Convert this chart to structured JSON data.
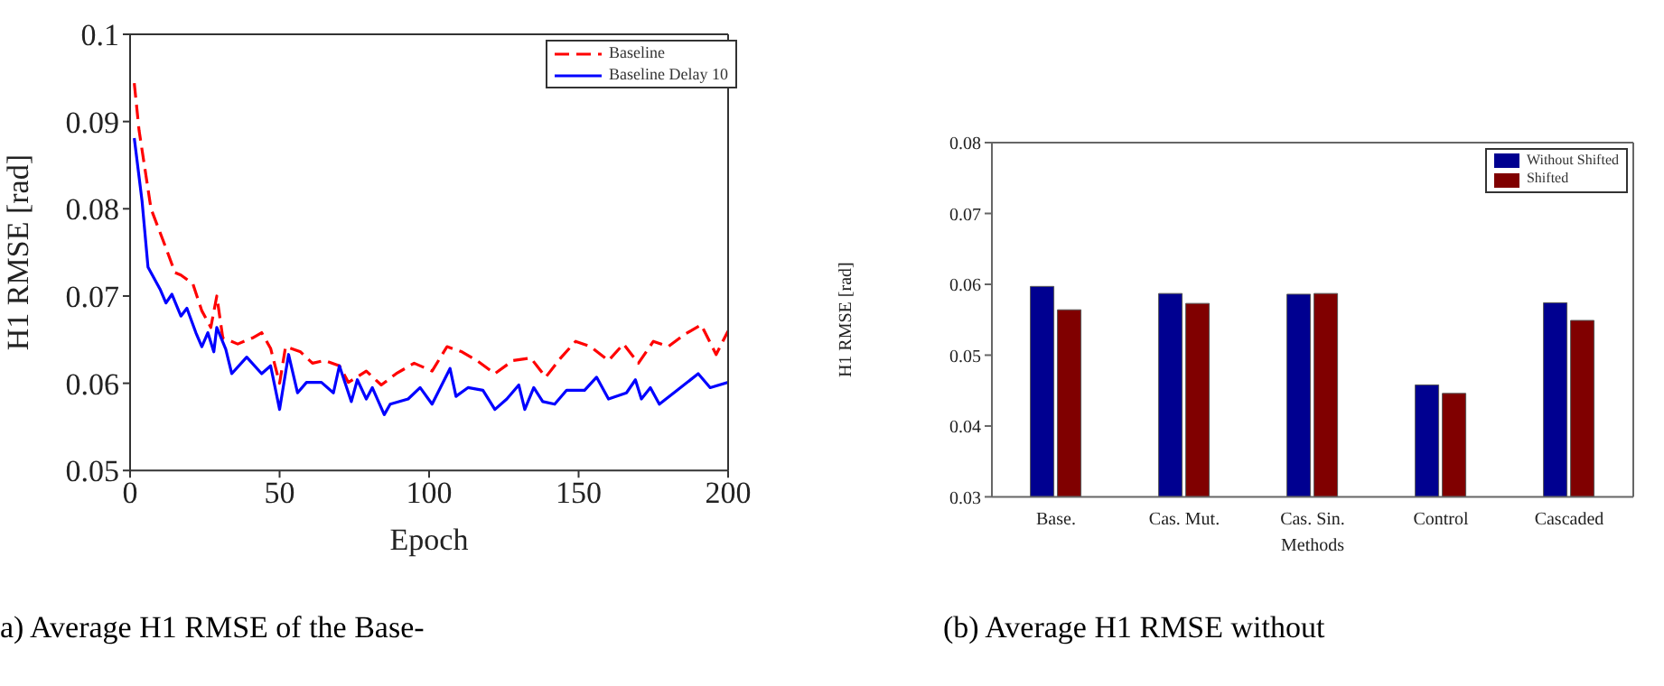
{
  "chart_data": [
    {
      "type": "line",
      "xlabel": "Epoch",
      "ylabel": "H1 RMSE [rad]",
      "xlim": [
        0,
        200
      ],
      "xticks": [
        0,
        50,
        100,
        150,
        200
      ],
      "ylim": [
        0.05,
        0.1
      ],
      "yticks": [
        0.05,
        0.06,
        0.07,
        0.08,
        0.09,
        0.1
      ],
      "grid": false,
      "legend": "top right",
      "marker": "none",
      "annotations": [
        "a) Average H1 RMSE of the Base-"
      ],
      "series": [
        {
          "name": "Baseline",
          "color": "#ff0000",
          "line_style": "dashed",
          "x": [
            1.4,
            3,
            7,
            12,
            15,
            17,
            21,
            24,
            27,
            29,
            31,
            36,
            41,
            44,
            47,
            50,
            52,
            57,
            61,
            65,
            70,
            73,
            79,
            84,
            89,
            95,
            101,
            106,
            111,
            116,
            122,
            128,
            134,
            139,
            144,
            149,
            154,
            160,
            165,
            170,
            175,
            180,
            185,
            191,
            196,
            200
          ],
          "values": [
            0.0944,
            0.089,
            0.08,
            0.0755,
            0.0727,
            0.0724,
            0.0714,
            0.0683,
            0.0664,
            0.07,
            0.0652,
            0.0645,
            0.0652,
            0.0658,
            0.064,
            0.06,
            0.0642,
            0.0636,
            0.0623,
            0.0626,
            0.062,
            0.0601,
            0.0614,
            0.0598,
            0.0611,
            0.0623,
            0.0614,
            0.0642,
            0.0636,
            0.0626,
            0.0611,
            0.0626,
            0.0629,
            0.0607,
            0.0629,
            0.0648,
            0.0642,
            0.0626,
            0.0645,
            0.0623,
            0.0648,
            0.0642,
            0.0655,
            0.0667,
            0.0633,
            0.066
          ]
        },
        {
          "name": "Baseline Delay 10",
          "color": "#0000ff",
          "line_style": "solid",
          "x": [
            1.4,
            4,
            6,
            10,
            12,
            14,
            17,
            19,
            22,
            24,
            26,
            28,
            29,
            32,
            34,
            39,
            44,
            47,
            50,
            53,
            56,
            59,
            64,
            68,
            70,
            74,
            76,
            79,
            81,
            85,
            87,
            93,
            97,
            101,
            107,
            109,
            113,
            118,
            122,
            126,
            130,
            132,
            135,
            138,
            142,
            146,
            152,
            156,
            160,
            166,
            169,
            171,
            174,
            177,
            183,
            190,
            194,
            200
          ],
          "values": [
            0.0881,
            0.0809,
            0.0733,
            0.0708,
            0.0692,
            0.0702,
            0.0677,
            0.0686,
            0.0658,
            0.0642,
            0.0658,
            0.0636,
            0.0664,
            0.0639,
            0.0611,
            0.063,
            0.0611,
            0.062,
            0.057,
            0.0633,
            0.0589,
            0.0601,
            0.0601,
            0.0589,
            0.062,
            0.0579,
            0.0604,
            0.0582,
            0.0595,
            0.0564,
            0.0576,
            0.0582,
            0.0595,
            0.0576,
            0.0617,
            0.0585,
            0.0595,
            0.0592,
            0.057,
            0.0582,
            0.0598,
            0.057,
            0.0595,
            0.0579,
            0.0576,
            0.0592,
            0.0592,
            0.0607,
            0.0582,
            0.0589,
            0.0604,
            0.0582,
            0.0595,
            0.0576,
            0.0592,
            0.0611,
            0.0595,
            0.0601
          ]
        }
      ]
    },
    {
      "type": "bar",
      "xlabel": "Methods",
      "ylabel": "H1 RMSE [rad]",
      "categories": [
        "Base.",
        "Cas. Mut.",
        "Cas. Sin.",
        "Control",
        "Cascaded"
      ],
      "ylim": [
        0.03,
        0.08
      ],
      "yticks": [
        0.03,
        0.04,
        0.05,
        0.06,
        0.07,
        0.08
      ],
      "grid": false,
      "legend": "top right",
      "annotations": [
        "(b) Average H1 RMSE without"
      ],
      "series": [
        {
          "name": "Without Shifted",
          "color": "#000090",
          "values": [
            0.0597,
            0.0587,
            0.0586,
            0.0458,
            0.0574
          ]
        },
        {
          "name": "Shifted",
          "color": "#800000",
          "values": [
            0.0564,
            0.0573,
            0.0587,
            0.0446,
            0.0549
          ]
        }
      ]
    }
  ]
}
